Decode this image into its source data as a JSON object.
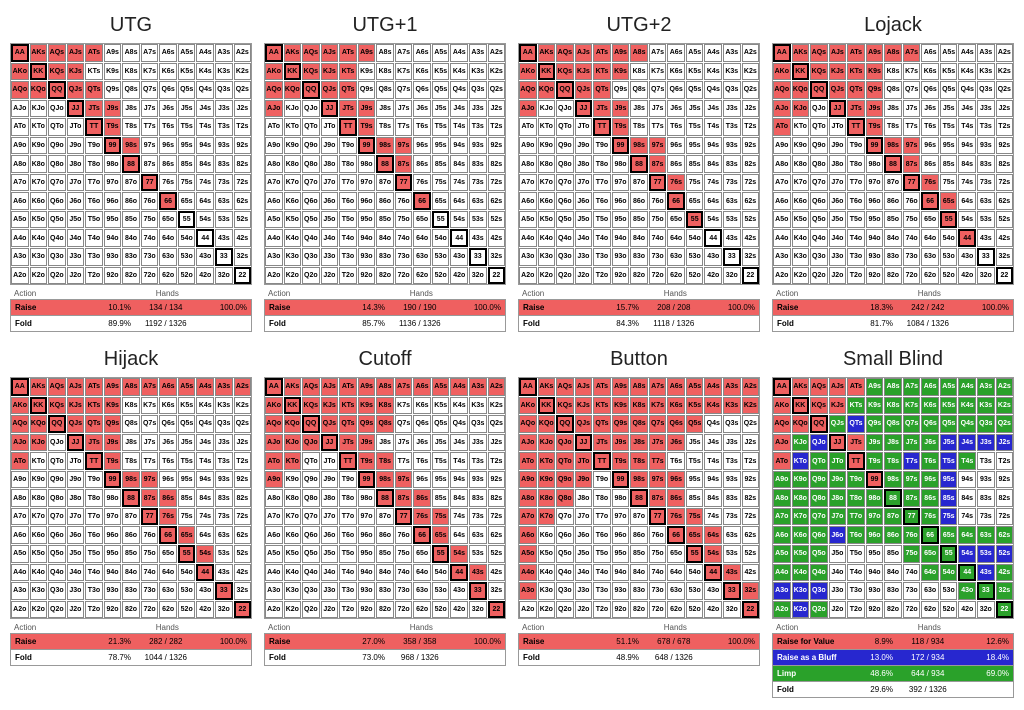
{
  "ranks": [
    "A",
    "K",
    "Q",
    "J",
    "T",
    "9",
    "8",
    "7",
    "6",
    "5",
    "4",
    "3",
    "2"
  ],
  "colors": {
    "raise": "#ef6060",
    "fold": "#ffffff",
    "value": "#ef6060",
    "bluff": "#2727cf",
    "limp": "#2aa12a",
    "border": "#888888",
    "pair_border": "#000000",
    "background": "#ffffff"
  },
  "legend_labels": {
    "action": "Action",
    "hands": "Hands",
    "raise": "Raise",
    "fold": "Fold",
    "value": "Raise for Value",
    "bluff": "Raise as a Bluff",
    "limp": "Limp"
  },
  "positions": [
    {
      "title": "UTG",
      "stats": [
        {
          "kind": "raise",
          "pct": "10.1%",
          "frac": "134 / 134",
          "pct2": "100.0%"
        },
        {
          "kind": "fold",
          "pct": "89.9%",
          "frac": "1192 / 1326",
          "pct2": ""
        }
      ],
      "grid": [
        "RRRRRFFFFFFFF",
        "RRRRFFFFFFFFF",
        "RRRRRFFFFFFFF",
        "FFFRRRFFFFFFF",
        "FFFFRRFFFFFFF",
        "FFFFFRRFFFFFF",
        "FFFFFFRFFFFFF",
        "FFFFFFFRFFFFF",
        "FFFFFFFFRFFFF",
        "FFFFFFFFFFFFF",
        "FFFFFFFFFFFFF",
        "FFFFFFFFFFFFF",
        "FFFFFFFFFFFFF"
      ]
    },
    {
      "title": "UTG+1",
      "stats": [
        {
          "kind": "raise",
          "pct": "14.3%",
          "frac": "190 / 190",
          "pct2": "100.0%"
        },
        {
          "kind": "fold",
          "pct": "85.7%",
          "frac": "1136 / 1326",
          "pct2": ""
        }
      ],
      "grid": [
        "RRRRRRFFFFFFF",
        "RRRRRFFFFFFFF",
        "RRRRRFFFFFFFF",
        "RFFRRRFFFFFFF",
        "FFFFRRFFFFFFF",
        "FFFFFRRRFFFFF",
        "FFFFFFRRFFFFF",
        "FFFFFFFRFFFFF",
        "FFFFFFFFRFFFF",
        "FFFFFFFFFFFFF",
        "FFFFFFFFFFFFF",
        "FFFFFFFFFFFFF",
        "FFFFFFFFFFFFF"
      ]
    },
    {
      "title": "UTG+2",
      "stats": [
        {
          "kind": "raise",
          "pct": "15.7%",
          "frac": "208 / 208",
          "pct2": "100.0%"
        },
        {
          "kind": "fold",
          "pct": "84.3%",
          "frac": "1118 / 1326",
          "pct2": ""
        }
      ],
      "grid": [
        "RRRRRRRFFFFFF",
        "RRRRRRFFFFFFF",
        "RRRRRFFFFFFFF",
        "RFFRRRFFFFFFF",
        "FFFFRRFFFFFFF",
        "FFFFFRRRFFFFF",
        "FFFFFFRRFFFFF",
        "FFFFFFFRRFFFF",
        "FFFFFFFFRFFFF",
        "FFFFFFFFFRFFF",
        "FFFFFFFFFFFFF",
        "FFFFFFFFFFFFF",
        "FFFFFFFFFFFFF"
      ]
    },
    {
      "title": "Lojack",
      "stats": [
        {
          "kind": "raise",
          "pct": "18.3%",
          "frac": "242 / 242",
          "pct2": "100.0%"
        },
        {
          "kind": "fold",
          "pct": "81.7%",
          "frac": "1084 / 1326",
          "pct2": ""
        }
      ],
      "grid": [
        "RRRRRRRRFFFFF",
        "RRRRRRFFFFFFF",
        "RRRRRRFFFFFFF",
        "RRFRRRFFFFFFF",
        "RFFFRRFFFFFFF",
        "FFFFFRRRFFFFF",
        "FFFFFFRRFFFFF",
        "FFFFFFFRRFFFF",
        "FFFFFFFFRRFFF",
        "FFFFFFFFFRFFF",
        "FFFFFFFFFFRFF",
        "FFFFFFFFFFFFF",
        "FFFFFFFFFFFFF"
      ]
    },
    {
      "title": "Hijack",
      "stats": [
        {
          "kind": "raise",
          "pct": "21.3%",
          "frac": "282 / 282",
          "pct2": "100.0%"
        },
        {
          "kind": "fold",
          "pct": "78.7%",
          "frac": "1044 / 1326",
          "pct2": ""
        }
      ],
      "grid": [
        "RRRRRRRRRRRRR",
        "RRRRRRFFFFFFF",
        "RRRRRRFFFFFFF",
        "RRFRRRFFFFFFF",
        "RFFFRRFFFFFFF",
        "FFFFFRRRFFFFF",
        "FFFFFFRRRFFFF",
        "FFFFFFFRRFFFF",
        "FFFFFFFFRRFFF",
        "FFFFFFFFFRRFF",
        "FFFFFFFFFFRFF",
        "FFFFFFFFFFFRF",
        "FFFFFFFFFFFFR"
      ]
    },
    {
      "title": "Cutoff",
      "stats": [
        {
          "kind": "raise",
          "pct": "27.0%",
          "frac": "358 / 358",
          "pct2": "100.0%"
        },
        {
          "kind": "fold",
          "pct": "73.0%",
          "frac": "968 / 1326",
          "pct2": ""
        }
      ],
      "grid": [
        "RRRRRRRRRRRRR",
        "RRRRRRRFFFFFF",
        "RRRRRRRFFFFFF",
        "RRRRRRFFFFFFF",
        "RRFFRRRFFFFFF",
        "RFFFFRRRFFFFF",
        "FFFFFFRRRFFFF",
        "FFFFFFFRRRFFF",
        "FFFFFFFFRRFFF",
        "FFFFFFFFFRRFF",
        "FFFFFFFFFFRRF",
        "FFFFFFFFFFFRF",
        "FFFFFFFFFFFFR"
      ]
    },
    {
      "title": "Button",
      "stats": [
        {
          "kind": "raise",
          "pct": "51.1%",
          "frac": "678 / 678",
          "pct2": "100.0%"
        },
        {
          "kind": "fold",
          "pct": "48.9%",
          "frac": "648 / 1326",
          "pct2": ""
        }
      ],
      "grid": [
        "RRRRRRRRRRRRR",
        "RRRRRRRRRRRRR",
        "RRRRRRRRRRFFF",
        "RRRRRRRRRFFFF",
        "RRRRRRRRFFFFF",
        "RRRRFRRRRFFFF",
        "RRRFFFRRRFFFF",
        "RRFFFFFRRRFFF",
        "RFFFFFFFRRRFF",
        "RFFFFFFFFRRFF",
        "RFFFFFFFFFRRF",
        "RFFFFFFFFFFRR",
        "FFFFFFFFFFFFR"
      ]
    },
    {
      "title": "Small Blind",
      "stats": [
        {
          "kind": "value",
          "pct": "8.9%",
          "frac": "118 / 934",
          "pct2": "12.6%"
        },
        {
          "kind": "bluff",
          "pct": "13.0%",
          "frac": "172 / 934",
          "pct2": "18.4%"
        },
        {
          "kind": "limp",
          "pct": "48.6%",
          "frac": "644 / 934",
          "pct2": "69.0%"
        },
        {
          "kind": "fold",
          "pct": "29.6%",
          "frac": "392 / 1326",
          "pct2": ""
        }
      ],
      "grid": [
        "VVVVVLLLLLLLL",
        "VVVVLLLLLLLLL",
        "VVVLBLLLLLLLL",
        "VLBVVLLLLBBBB",
        "VBLLVLLBLBLFF",
        "LLLLLVLLLBFFF",
        "LLLLLLLLLBFFF",
        "LLLLLLLLLBFFF",
        "LLLBLLLLLLLLL",
        "LLLFFFFLLLBBB",
        "LLLFFFFFLLLBL",
        "BBBFFFFFFFLLL",
        "LBLFFFFFFFFFL"
      ]
    }
  ]
}
